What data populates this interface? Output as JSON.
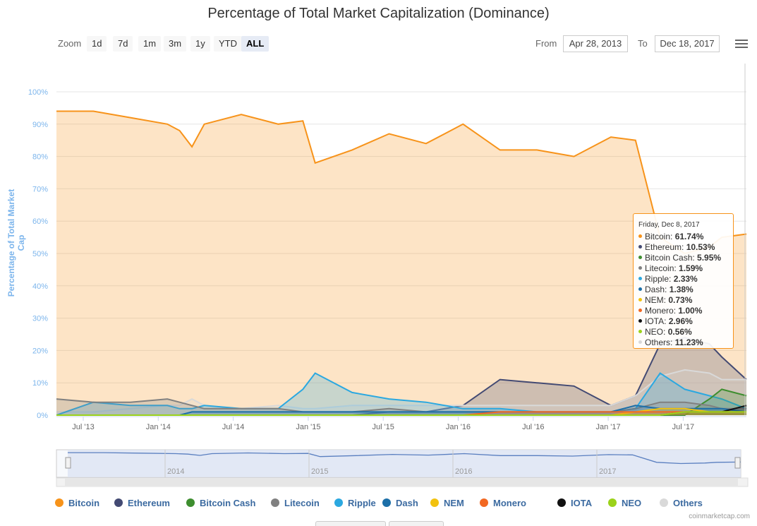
{
  "title": "Percentage of Total Market Capitalization (Dominance)",
  "toolbar": {
    "zoom_label": "Zoom",
    "zoom_buttons": [
      "1d",
      "7d",
      "1m",
      "3m",
      "1y",
      "YTD",
      "ALL"
    ],
    "active_zoom": "ALL",
    "from_label": "From",
    "from_value": "Apr 28, 2013",
    "to_label": "To",
    "to_value": "Dec 18, 2017",
    "menu_icon": "hamburger-menu-icon"
  },
  "credit": "coinmarketcap.com",
  "colors": {
    "bitcoin": "#f7931a",
    "ethereum": "#434a73",
    "bitcoin_cash": "#3e8e2f",
    "litecoin": "#808080",
    "ripple": "#2ba8e0",
    "dash": "#1c6fa8",
    "nem": "#f2c20f",
    "monero": "#f26822",
    "iota": "#111111",
    "neo": "#9bd21a",
    "others": "#d9d9d9"
  },
  "tooltip": {
    "date": "Friday, Dec 8, 2017",
    "rows": [
      {
        "name": "Bitcoin",
        "value": "61.74%",
        "color": "#f7931a"
      },
      {
        "name": "Ethereum",
        "value": "10.53%",
        "color": "#434a73"
      },
      {
        "name": "Bitcoin Cash",
        "value": "5.95%",
        "color": "#3e8e2f"
      },
      {
        "name": "Litecoin",
        "value": "1.59%",
        "color": "#808080"
      },
      {
        "name": "Ripple",
        "value": "2.33%",
        "color": "#2ba8e0"
      },
      {
        "name": "Dash",
        "value": "1.38%",
        "color": "#1c6fa8"
      },
      {
        "name": "NEM",
        "value": "0.73%",
        "color": "#f2c20f"
      },
      {
        "name": "Monero",
        "value": "1.00%",
        "color": "#f26822"
      },
      {
        "name": "IOTA",
        "value": "2.96%",
        "color": "#111111"
      },
      {
        "name": "NEO",
        "value": "0.56%",
        "color": "#9bd21a"
      },
      {
        "name": "Others",
        "value": "11.23%",
        "color": "#d9d9d9"
      }
    ]
  },
  "chart_data": {
    "type": "area",
    "title": "Percentage of Total Market Capitalization (Dominance)",
    "xlabel": "",
    "ylabel": "Percentage of Total Market Cap",
    "ylim": [
      0,
      100
    ],
    "yticks": [
      "0%",
      "10%",
      "20%",
      "30%",
      "40%",
      "50%",
      "60%",
      "70%",
      "80%",
      "90%",
      "100%"
    ],
    "xticks": [
      "Jul '13",
      "Jan '14",
      "Jul '14",
      "Jan '15",
      "Jul '15",
      "Jan '16",
      "Jul '16",
      "Jan '17",
      "Jul '17"
    ],
    "navigator_labels": [
      "2014",
      "2015",
      "2016",
      "2017"
    ],
    "grid": true,
    "legend_position": "bottom",
    "x": [
      "2013-04",
      "2013-07",
      "2013-10",
      "2014-01",
      "2014-02",
      "2014-03",
      "2014-04",
      "2014-07",
      "2014-10",
      "2014-12",
      "2015-01",
      "2015-04",
      "2015-07",
      "2015-10",
      "2016-01",
      "2016-04",
      "2016-07",
      "2016-10",
      "2017-01",
      "2017-03",
      "2017-05",
      "2017-07",
      "2017-09",
      "2017-10",
      "2017-12"
    ],
    "series": [
      {
        "name": "Bitcoin",
        "values": [
          94,
          94,
          92,
          90,
          88,
          83,
          90,
          93,
          90,
          91,
          78,
          82,
          87,
          84,
          90,
          82,
          82,
          80,
          86,
          85,
          55,
          50,
          52,
          55,
          56
        ]
      },
      {
        "name": "Ethereum",
        "values": [
          0,
          0,
          0,
          0,
          0,
          0,
          0,
          0,
          0,
          0,
          0,
          0,
          1,
          1,
          3,
          11,
          10,
          9,
          3,
          6,
          22,
          24,
          22,
          18,
          11
        ]
      },
      {
        "name": "Bitcoin Cash",
        "values": [
          0,
          0,
          0,
          0,
          0,
          0,
          0,
          0,
          0,
          0,
          0,
          0,
          0,
          0,
          0,
          0,
          0,
          0,
          0,
          0,
          0,
          0,
          5,
          8,
          6
        ]
      },
      {
        "name": "Litecoin",
        "values": [
          5,
          4,
          4,
          5,
          4,
          3,
          2,
          2,
          2,
          1,
          1,
          1,
          2,
          1,
          1,
          1,
          1,
          1,
          1,
          2,
          4,
          4,
          3,
          2,
          2
        ]
      },
      {
        "name": "Ripple",
        "values": [
          0,
          4,
          3,
          3,
          2,
          2,
          3,
          2,
          2,
          8,
          13,
          7,
          5,
          4,
          2,
          2,
          1,
          1,
          1,
          2,
          13,
          8,
          6,
          5,
          2
        ]
      },
      {
        "name": "Dash",
        "values": [
          0,
          0,
          0,
          0,
          0,
          1,
          1,
          1,
          1,
          1,
          1,
          1,
          1,
          1,
          1,
          1,
          1,
          1,
          1,
          3,
          2,
          2,
          2,
          2,
          1
        ]
      },
      {
        "name": "NEM",
        "values": [
          0,
          0,
          0,
          0,
          0,
          0,
          0,
          0,
          0,
          0,
          0,
          0,
          0,
          0,
          0,
          0,
          0,
          0,
          0,
          1,
          2,
          2,
          1,
          1,
          1
        ]
      },
      {
        "name": "Monero",
        "values": [
          0,
          0,
          0,
          0,
          0,
          0,
          0,
          0,
          0,
          0,
          0,
          0,
          0,
          0,
          0,
          1,
          1,
          1,
          1,
          1,
          1,
          1,
          1,
          1,
          1
        ]
      },
      {
        "name": "IOTA",
        "values": [
          0,
          0,
          0,
          0,
          0,
          0,
          0,
          0,
          0,
          0,
          0,
          0,
          0,
          0,
          0,
          0,
          0,
          0,
          0,
          0,
          0,
          1,
          1,
          1,
          3
        ]
      },
      {
        "name": "NEO",
        "values": [
          0,
          0,
          0,
          0,
          0,
          0,
          0,
          0,
          0,
          0,
          0,
          0,
          0,
          0,
          0,
          0,
          0,
          0,
          0,
          0,
          0,
          1,
          1,
          1,
          1
        ]
      },
      {
        "name": "Others",
        "values": [
          1,
          1,
          2,
          3,
          3,
          5,
          3,
          2,
          3,
          2,
          2,
          3,
          3,
          3,
          3,
          3,
          3,
          3,
          3,
          6,
          12,
          14,
          13,
          11,
          11
        ]
      }
    ]
  }
}
